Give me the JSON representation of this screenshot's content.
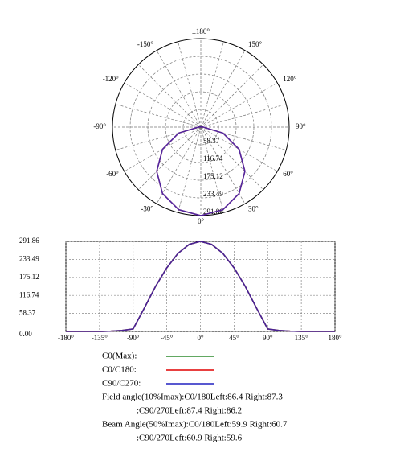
{
  "chart_data": [
    {
      "type": "polar",
      "theta": [
        -180,
        -165,
        -150,
        -135,
        -120,
        -105,
        -90,
        -75,
        -60,
        -45,
        -30,
        -15,
        0,
        15,
        30,
        45,
        60,
        75,
        90,
        105,
        120,
        135,
        150,
        165,
        180
      ],
      "series": [
        {
          "color": "#e00000",
          "values": [
            0,
            0,
            0,
            0,
            1,
            3,
            8,
            76,
            146,
            206,
            253,
            282,
            291.86,
            282,
            253,
            206,
            146,
            76,
            8,
            3,
            1,
            0,
            0,
            0,
            0
          ]
        },
        {
          "color": "#2020c0",
          "values": [
            0,
            0,
            0,
            0,
            1,
            3,
            8,
            76,
            146,
            206,
            253,
            282,
            291.86,
            282,
            253,
            206,
            146,
            76,
            8,
            3,
            1,
            0,
            0,
            0,
            0
          ]
        }
      ],
      "rlim": [
        0,
        291.86
      ],
      "rticks": [
        58.37,
        116.74,
        175.12,
        233.49,
        291.86
      ],
      "thetaticks": [
        {
          "value": 180,
          "label": "±180°"
        },
        {
          "value": -150,
          "label": "-150°"
        },
        {
          "value": 150,
          "label": "150°"
        },
        {
          "value": -120,
          "label": "-120°"
        },
        {
          "value": 120,
          "label": "120°"
        },
        {
          "value": -90,
          "label": "-90°"
        },
        {
          "value": 90,
          "label": "90°"
        },
        {
          "value": -60,
          "label": "-60°"
        },
        {
          "value": 60,
          "label": "60°"
        },
        {
          "value": -30,
          "label": "-30°"
        },
        {
          "value": 30,
          "label": "30°"
        },
        {
          "value": 0,
          "label": "0°"
        }
      ]
    },
    {
      "type": "line",
      "x": [
        -180,
        -165,
        -150,
        -135,
        -120,
        -105,
        -90,
        -75,
        -60,
        -45,
        -30,
        -15,
        0,
        15,
        30,
        45,
        60,
        75,
        90,
        105,
        120,
        135,
        150,
        165,
        180
      ],
      "series": [
        {
          "name": "C0(Max):",
          "color": "#2e8b2e",
          "values": [
            0,
            0,
            0,
            0,
            1,
            3,
            8,
            76,
            146,
            206,
            253,
            282,
            291.86,
            282,
            253,
            206,
            146,
            76,
            8,
            3,
            1,
            0,
            0,
            0,
            0
          ]
        },
        {
          "name": "C0/C180:",
          "color": "#e00000",
          "values": [
            0,
            0,
            0,
            0,
            1,
            3,
            8,
            76,
            146,
            206,
            253,
            282,
            291.86,
            282,
            253,
            206,
            146,
            76,
            8,
            3,
            1,
            0,
            0,
            0,
            0
          ]
        },
        {
          "name": "C90/C270:",
          "color": "#2020c0",
          "values": [
            0,
            0,
            0,
            0,
            1,
            3,
            8,
            76,
            146,
            206,
            253,
            282,
            291.86,
            282,
            253,
            206,
            146,
            76,
            8,
            3,
            1,
            0,
            0,
            0,
            0
          ]
        }
      ],
      "xlim": [
        -180,
        180
      ],
      "xticks": [
        {
          "value": -180,
          "label": "-180°"
        },
        {
          "value": -135,
          "label": "-135°"
        },
        {
          "value": -90,
          "label": "-90°"
        },
        {
          "value": -45,
          "label": "-45°"
        },
        {
          "value": 0,
          "label": "0°"
        },
        {
          "value": 45,
          "label": "45°"
        },
        {
          "value": 90,
          "label": "90°"
        },
        {
          "value": 135,
          "label": "135°"
        },
        {
          "value": 180,
          "label": "180°"
        }
      ],
      "ylim": [
        0,
        291.86
      ],
      "yticks": [
        {
          "value": 0,
          "label": "0.00"
        },
        58.37,
        116.74,
        175.12,
        233.49,
        291.86
      ],
      "grid": true
    }
  ],
  "notes": [
    "Field angle(10%Imax):C0/180Left:86.4 Right:87.3",
    ":C90/270Left:87.4 Right:86.2",
    "Beam Angle(50%Imax):C0/180Left:59.9 Right:60.7",
    ":C90/270Left:60.9 Right:59.6"
  ]
}
